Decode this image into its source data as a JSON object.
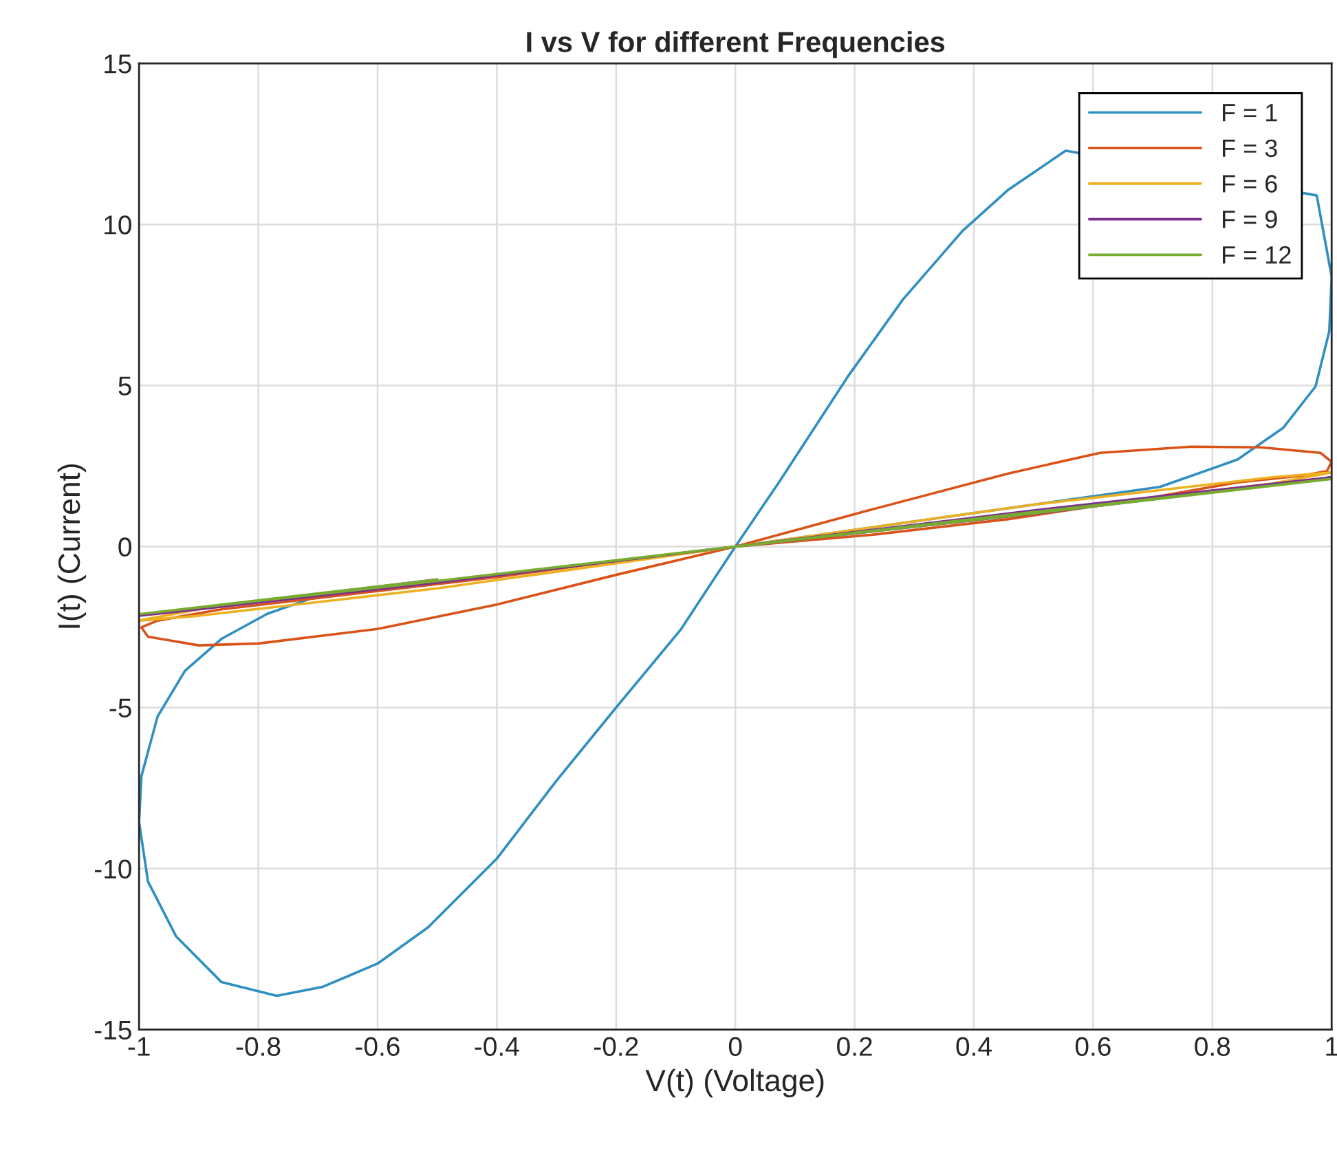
{
  "chart_data": {
    "type": "line",
    "title": "I vs V for different Frequencies",
    "xlabel": "V(t) (Voltage)",
    "ylabel": "I(t) (Current)",
    "xlim": [
      -1,
      1
    ],
    "xticks": [
      -1,
      -0.8,
      -0.6,
      -0.4,
      -0.2,
      0,
      0.2,
      0.4,
      0.6,
      0.8,
      1
    ],
    "ylim": [
      -15,
      15
    ],
    "yticks": [
      -15,
      -10,
      -5,
      0,
      5,
      10,
      15
    ],
    "grid": true,
    "legend": "top right",
    "line_style": "solid",
    "series": [
      {
        "name": "F = 1",
        "color": "#2f8fc0",
        "x": [
          0,
          0.073,
          0.188,
          0.281,
          0.381,
          0.458,
          0.554,
          0.975,
          1.0,
          0.996,
          0.973,
          0.919,
          0.842,
          0.712,
          0,
          -0.092,
          -0.2,
          -0.3,
          -0.4,
          -0.515,
          -0.6,
          -0.692,
          -0.769,
          -0.862,
          -0.938,
          -0.985,
          -1.0,
          -0.996,
          -0.969,
          -0.923,
          -0.862,
          -0.785,
          -0.708
        ],
        "values": [
          0,
          1.99,
          5.26,
          7.67,
          9.8,
          11.08,
          12.29,
          10.9,
          8.38,
          6.68,
          4.97,
          3.69,
          2.7,
          1.85,
          0,
          -2.59,
          -5,
          -7.27,
          -9.69,
          -11.82,
          -12.95,
          -13.67,
          -13.95,
          -13.52,
          -12.1,
          -10.4,
          -8.55,
          -7.13,
          -5.28,
          -3.86,
          -2.87,
          -2.09,
          -1.59
        ]
      },
      {
        "name": "F = 3",
        "color": "#d95319",
        "x": [
          0,
          0.227,
          0.458,
          0.612,
          0.765,
          0.881,
          0.981,
          1.0,
          0.992,
          0.95,
          0.842,
          0.688,
          0.458,
          0.227,
          0,
          -0.2,
          -0.4,
          -0.6,
          -0.8,
          -0.9,
          -0.985,
          -0.996,
          -0.969,
          -0.862,
          -0.631,
          -0.4,
          -0.2
        ],
        "values": [
          0,
          1.14,
          2.27,
          2.91,
          3.1,
          3.08,
          2.91,
          2.63,
          2.34,
          2.2,
          1.99,
          1.49,
          0.85,
          0.36,
          0,
          -0.88,
          -1.8,
          -2.56,
          -3.01,
          -3.07,
          -2.8,
          -2.51,
          -2.3,
          -1.95,
          -1.45,
          -0.95,
          -0.45
        ]
      },
      {
        "name": "F = 6",
        "color": "#edb120",
        "x": [
          0,
          0.5,
          0.9,
          1.0,
          0.9,
          0.5,
          0,
          -0.5,
          -0.9,
          -1.0,
          -0.9,
          -0.5
        ],
        "values": [
          0,
          1.3,
          2.15,
          2.3,
          1.95,
          1.05,
          0,
          -1.3,
          -2.15,
          -2.3,
          -1.95,
          -1.05
        ]
      },
      {
        "name": "F = 9",
        "color": "#7e2f8e",
        "x": [
          0,
          0.5,
          1.0,
          0.5,
          0,
          -0.5,
          -1.0,
          -0.5
        ],
        "values": [
          0,
          1.12,
          2.15,
          1.02,
          0,
          -1.12,
          -2.15,
          -1.02
        ]
      },
      {
        "name": "F = 12",
        "color": "#77ac30",
        "x": [
          0,
          0.5,
          1.0,
          0.5,
          0,
          -0.5,
          -1.0,
          -0.5
        ],
        "values": [
          0,
          1.07,
          2.1,
          1.03,
          0,
          -1.07,
          -2.1,
          -1.03
        ]
      }
    ]
  }
}
